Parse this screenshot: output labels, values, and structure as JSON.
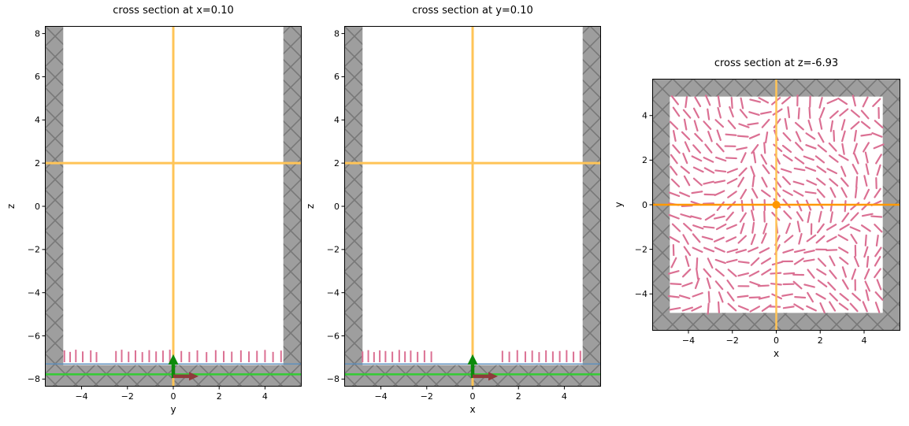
{
  "figure": {
    "background": "#ffffff",
    "accent_orange": "#ffc457",
    "accent_orange_strong": "#ff9800",
    "director_pink": "#DB7093",
    "wall_gray": "#9e9e9e"
  },
  "chart_data": [
    {
      "type": "cross_section",
      "title": "cross section at x=0.10",
      "xlabel": "y",
      "ylabel": "z",
      "xlim": [
        -5.6,
        5.6
      ],
      "ylim": [
        -8.35,
        8.35
      ],
      "xticks": [
        -4,
        -2,
        0,
        2,
        4
      ],
      "yticks": [
        -8,
        -6,
        -4,
        -2,
        0,
        2,
        4,
        6,
        8
      ],
      "wall_face": "#9e9e9e",
      "wall_hatch": "#787878",
      "walls": [
        {
          "x": [
            -5.6,
            -4.8
          ],
          "y": [
            -8.35,
            8.35
          ]
        },
        {
          "x": [
            4.8,
            5.6
          ],
          "y": [
            -8.35,
            8.35
          ]
        },
        {
          "x": [
            -5.6,
            5.6
          ],
          "y": [
            -8.35,
            -7.35
          ]
        }
      ],
      "crosshair": {
        "color": "#ffc457",
        "width": 3,
        "v_x": 0,
        "h_y": 2
      },
      "surface_lines": [
        {
          "y": -7.3,
          "color": "#5a8fc0",
          "width": 1.4
        },
        {
          "y": -7.78,
          "color": "#33cc33",
          "width": 2.6
        }
      ],
      "directors": {
        "color": "#DB7093",
        "width": 2,
        "base": -7.22,
        "positions": [
          -4.75,
          -4.5,
          -4.25,
          -3.95,
          -3.6,
          -3.35,
          -2.5,
          -2.25,
          -1.95,
          -1.65,
          -1.35,
          -1.05,
          -0.75,
          -0.45,
          -0.15,
          0.35,
          0.7,
          1.05,
          1.45,
          1.85,
          2.2,
          2.55,
          2.95,
          3.3,
          3.65,
          4.0,
          4.35,
          4.7
        ],
        "heights": [
          0.55,
          0.48,
          0.58,
          0.5,
          0.55,
          0.47,
          0.52,
          0.58,
          0.49,
          0.55,
          0.47,
          0.56,
          0.5,
          0.54,
          0.58,
          0.52,
          0.48,
          0.55,
          0.47,
          0.56,
          0.52,
          0.49,
          0.55,
          0.5,
          0.53,
          0.57,
          0.48,
          0.54
        ]
      },
      "arrows": [
        {
          "dir": "up",
          "x": 0,
          "y0": -7.95,
          "y1": -6.85,
          "color": "#0b8a0b",
          "shaft": 4.5,
          "head_w": 13,
          "head_l": 13
        },
        {
          "dir": "right",
          "y": -7.87,
          "x0": 0,
          "x1": 1.1,
          "color": "#8e3b3b",
          "shaft": 4.5,
          "head_w": 11,
          "head_l": 12
        }
      ]
    },
    {
      "type": "cross_section",
      "title": "cross section at y=0.10",
      "xlabel": "x",
      "ylabel": "z",
      "xlim": [
        -5.6,
        5.6
      ],
      "ylim": [
        -8.35,
        8.35
      ],
      "xticks": [
        -4,
        -2,
        0,
        2,
        4
      ],
      "yticks": [
        -8,
        -6,
        -4,
        -2,
        0,
        2,
        4,
        6,
        8
      ],
      "wall_face": "#9e9e9e",
      "wall_hatch": "#787878",
      "walls": [
        {
          "x": [
            -5.6,
            -4.8
          ],
          "y": [
            -8.35,
            8.35
          ]
        },
        {
          "x": [
            4.8,
            5.6
          ],
          "y": [
            -8.35,
            8.35
          ]
        },
        {
          "x": [
            -5.6,
            5.6
          ],
          "y": [
            -8.35,
            -7.35
          ]
        }
      ],
      "crosshair": {
        "color": "#ffc457",
        "width": 3,
        "v_x": 0,
        "h_y": 2
      },
      "surface_lines": [
        {
          "y": -7.3,
          "color": "#5a8fc0",
          "width": 1.4
        },
        {
          "y": -7.78,
          "color": "#33cc33",
          "width": 2.6
        }
      ],
      "directors": {
        "color": "#DB7093",
        "width": 2,
        "base": -7.22,
        "positions": [
          -4.8,
          -4.55,
          -4.3,
          -4.05,
          -3.8,
          -3.5,
          -3.2,
          -2.95,
          -2.7,
          -2.4,
          -2.1,
          -1.8,
          1.3,
          1.6,
          1.95,
          2.3,
          2.6,
          2.9,
          3.2,
          3.5,
          3.8,
          4.1,
          4.4,
          4.7
        ],
        "heights": [
          0.5,
          0.56,
          0.47,
          0.55,
          0.52,
          0.49,
          0.57,
          0.5,
          0.54,
          0.48,
          0.55,
          0.5,
          0.53,
          0.49,
          0.56,
          0.5,
          0.54,
          0.47,
          0.55,
          0.5,
          0.52,
          0.56,
          0.49,
          0.53
        ]
      },
      "arrows": [
        {
          "dir": "up",
          "x": 0,
          "y0": -7.95,
          "y1": -6.85,
          "color": "#0b8a0b",
          "shaft": 4.5,
          "head_w": 13,
          "head_l": 13
        },
        {
          "dir": "right",
          "y": -7.87,
          "x0": 0,
          "x1": 1.1,
          "color": "#8e3b3b",
          "shaft": 4.5,
          "head_w": 11,
          "head_l": 12
        }
      ]
    },
    {
      "type": "director_field",
      "title": "cross section at z=-6.93",
      "xlabel": "x",
      "ylabel": "y",
      "xlim": [
        -5.65,
        5.65
      ],
      "ylim": [
        -5.65,
        5.65
      ],
      "xticks": [
        -4,
        -2,
        0,
        2,
        4
      ],
      "yticks": [
        -4,
        -2,
        0,
        2,
        4
      ],
      "wall_face": "#9e9e9e",
      "wall_hatch": "#787878",
      "walls": [
        {
          "x": [
            -5.65,
            -4.85
          ],
          "y": [
            -5.65,
            5.65
          ]
        },
        {
          "x": [
            4.85,
            5.65
          ],
          "y": [
            -5.65,
            5.65
          ]
        },
        {
          "x": [
            -5.65,
            5.65
          ],
          "y": [
            4.85,
            5.65
          ]
        },
        {
          "x": [
            -5.65,
            5.65
          ],
          "y": [
            -5.65,
            -4.85
          ]
        }
      ],
      "crosshair": {
        "color": "#ffc457",
        "width": 2.5,
        "v_x": 0,
        "h_y": 0,
        "h_color": "#ff9800",
        "marker_r": 5,
        "marker_color": "#ff9800"
      },
      "field": {
        "color": "#DB7093",
        "width": 2.2,
        "x0": -4.62,
        "x1": 4.62,
        "y0": -4.62,
        "y1": 4.62,
        "nx": 19,
        "ny": 19,
        "len": 0.46,
        "seed": 11
      }
    }
  ]
}
